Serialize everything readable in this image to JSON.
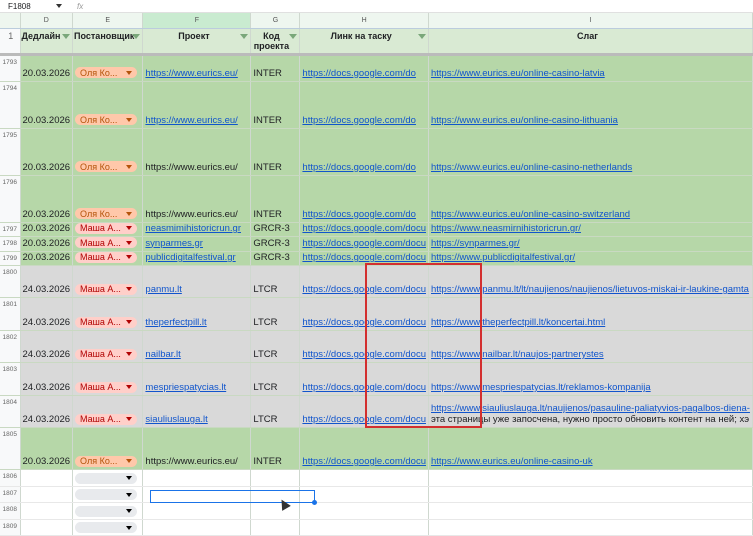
{
  "formula_bar": {
    "cell_ref": "F1808",
    "fx_icon": "fx"
  },
  "columns": [
    "D",
    "E",
    "F",
    "G",
    "H",
    "I"
  ],
  "headers": {
    "row_num": "1",
    "deadline": "Дедлайн",
    "assignee": "Постановщик",
    "project": "Проект",
    "code": "Код проекта",
    "task_link": "Линк на таску",
    "slug": "Слаг"
  },
  "rows": [
    {
      "num": "1793",
      "style": "green",
      "deadline": "20.03.2026",
      "assignee": "Оля Ко...",
      "assignee_kind": "olya",
      "project": "https://www.eurics.eu/",
      "project_link": true,
      "code": "INTER",
      "task": "https://docs.google.com/do",
      "slug": "https://www.eurics.eu/online-casino-latvia",
      "slug2": ""
    },
    {
      "num": "1794",
      "style": "green",
      "deadline": "20.03.2026",
      "assignee": "Оля Ко...",
      "assignee_kind": "olya",
      "project": "https://www.eurics.eu/",
      "project_link": true,
      "code": "INTER",
      "task": "https://docs.google.com/do",
      "slug": "https://www.eurics.eu/online-casino-lithuania",
      "slug2": ""
    },
    {
      "num": "1795",
      "style": "green",
      "deadline": "20.03.2026",
      "assignee": "Оля Ко...",
      "assignee_kind": "olya",
      "project": "https://www.eurics.eu/",
      "project_link": false,
      "code": "INTER",
      "task": "https://docs.google.com/do",
      "slug": "https://www.eurics.eu/online-casino-netherlands",
      "slug2": ""
    },
    {
      "num": "1796",
      "style": "green",
      "deadline": "20.03.2026",
      "assignee": "Оля Ко...",
      "assignee_kind": "olya",
      "project": "https://www.eurics.eu/",
      "project_link": false,
      "code": "INTER",
      "task": "https://docs.google.com/do",
      "slug": "https://www.eurics.eu/online-casino-switzerland",
      "slug2": ""
    },
    {
      "num": "1797",
      "style": "green",
      "deadline": "20.03.2026",
      "assignee": "Маша А...",
      "assignee_kind": "masha",
      "project": "neasmimihistoricrun.gr",
      "project_link": true,
      "code": "GRCR-3",
      "task": "https://docs.google.com/docu",
      "slug": "https://www.neasmirnihistoricrun.gr/",
      "slug2": ""
    },
    {
      "num": "1798",
      "style": "green",
      "deadline": "20.03.2026",
      "assignee": "Маша А...",
      "assignee_kind": "masha",
      "project": "synparmes.gr",
      "project_link": true,
      "code": "GRCR-3",
      "task": "https://docs.google.com/docu",
      "slug": "https://synparmes.gr/",
      "slug2": ""
    },
    {
      "num": "1799",
      "style": "green",
      "deadline": "20.03.2026",
      "assignee": "Маша А...",
      "assignee_kind": "masha",
      "project": "publicdigitalfestival.gr",
      "project_link": true,
      "code": "GRCR-3",
      "task": "https://docs.google.com/docu",
      "slug": "https://www.publicdigitalfestival.gr/",
      "slug2": ""
    },
    {
      "num": "1800",
      "style": "gray",
      "deadline": "24.03.2026",
      "assignee": "Маша А...",
      "assignee_kind": "masha",
      "project": "panmu.lt",
      "project_link": true,
      "code": "LTCR",
      "task": "https://docs.google.com/docu",
      "slug": "https://www.panmu.lt/lt/naujienos/naujienos/lietuvos-miskai-ir-laukine-gamta",
      "slug2": ""
    },
    {
      "num": "1801",
      "style": "gray",
      "deadline": "24.03.2026",
      "assignee": "Маша А...",
      "assignee_kind": "masha",
      "project": "theperfectpill.lt",
      "project_link": true,
      "code": "LTCR",
      "task": "https://docs.google.com/docu",
      "slug": "https://www.theperfectpill.lt/koncertai.html",
      "slug2": ""
    },
    {
      "num": "1802",
      "style": "gray",
      "deadline": "24.03.2026",
      "assignee": "Маша А...",
      "assignee_kind": "masha",
      "project": "nailbar.lt",
      "project_link": true,
      "code": "LTCR",
      "task": "https://docs.google.com/docu",
      "slug": "https://www.nailbar.lt/naujos-partnerystes",
      "slug2": ""
    },
    {
      "num": "1803",
      "style": "gray",
      "deadline": "24.03.2026",
      "assignee": "Маша А...",
      "assignee_kind": "masha",
      "project": "mespriespatycias.lt",
      "project_link": true,
      "code": "LTCR",
      "task": "https://docs.google.com/docu",
      "slug": "https://www.mespriespatycias.lt/reklamos-kompanija",
      "slug2": ""
    },
    {
      "num": "1804",
      "style": "gray",
      "deadline": "24.03.2026",
      "assignee": "Маша А...",
      "assignee_kind": "masha",
      "project": "siauliuslauga.lt",
      "project_link": true,
      "code": "LTCR",
      "task": "https://docs.google.com/docu",
      "slug": "https://www.siauliuslauga.lt/naujienos/pasauline-paliatyvios-pagalbos-diena-",
      "slug2": "эта страницы уже запосчена, нужно просто обновить контент на ней; хэ"
    },
    {
      "num": "1805",
      "style": "green",
      "deadline": "20.03.2026",
      "assignee": "Оля Ко...",
      "assignee_kind": "olya",
      "project": "https://www.eurics.eu/",
      "project_link": false,
      "code": "INTER",
      "task": "https://docs.google.com/docu",
      "slug": "https://www.eurics.eu/online-casino-uk",
      "slug2": ""
    },
    {
      "num": "1806",
      "style": "empty"
    },
    {
      "num": "1807",
      "style": "empty"
    },
    {
      "num": "1808",
      "style": "empty",
      "selected": true
    },
    {
      "num": "1809",
      "style": "empty"
    }
  ]
}
